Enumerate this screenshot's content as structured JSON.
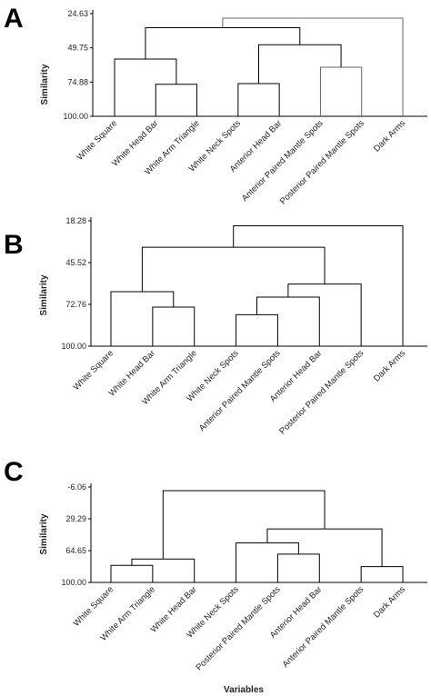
{
  "chart_data": [
    {
      "type": "dendrogram",
      "panel": "A",
      "ylabel": "Similarity",
      "xlabel": "",
      "ylim": [
        24.63,
        100.0
      ],
      "yticks": [
        "24.63",
        "49.75",
        "74.88",
        "100.00"
      ],
      "ytick_values": [
        24.63,
        49.75,
        74.88,
        100.0
      ],
      "leaves": [
        "White Square",
        "White Head Bar",
        "White Arm Triangle",
        "White Neck Spots",
        "Anterior Head Bar",
        "Anterior Paired Mantle Spots",
        "Posterior Paired Mantle Spots",
        "Dark Arms"
      ],
      "merges": [
        {
          "a": 1,
          "b": 2,
          "similarity": 76.5
        },
        {
          "a": 3,
          "b": 4,
          "similarity": 76.0
        },
        {
          "a": 5,
          "b": 6,
          "similarity": 64.0
        },
        {
          "a": 0,
          "b": 8,
          "similarity": 58.0
        },
        {
          "a": 9,
          "b": 10,
          "similarity": 47.5
        },
        {
          "a": 11,
          "b": 12,
          "similarity": 35.0
        },
        {
          "a": 13,
          "b": 7,
          "similarity": 28.0
        }
      ],
      "light_merges": [
        2,
        6
      ]
    },
    {
      "type": "dendrogram",
      "panel": "B",
      "ylabel": "Similarity",
      "xlabel": "",
      "ylim": [
        18.28,
        100.0
      ],
      "yticks": [
        "18.28",
        "45.52",
        "72.76",
        "100.00"
      ],
      "ytick_values": [
        18.28,
        45.52,
        72.76,
        100.0
      ],
      "leaves": [
        "White Square",
        "White Head Bar",
        "White Arm Triangle",
        "White Neck Spots",
        "Anterior Paired Mantle Spots",
        "Anterior Head Bar",
        "Posterior Paired Mantle Spots",
        "Dark Arms"
      ],
      "merges": [
        {
          "a": 3,
          "b": 4,
          "similarity": 79.5
        },
        {
          "a": 1,
          "b": 2,
          "similarity": 74.5
        },
        {
          "a": 8,
          "b": 5,
          "similarity": 68.0
        },
        {
          "a": 0,
          "b": 9,
          "similarity": 64.5
        },
        {
          "a": 10,
          "b": 6,
          "similarity": 59.5
        },
        {
          "a": 11,
          "b": 12,
          "similarity": 35.5
        },
        {
          "a": 13,
          "b": 7,
          "similarity": 21.5
        }
      ],
      "light_merges": []
    },
    {
      "type": "dendrogram",
      "panel": "C",
      "ylabel": "Similarity",
      "xlabel": "Variables",
      "ylim": [
        -6.06,
        100.0
      ],
      "yticks": [
        "-6.06",
        "29.29",
        "64.65",
        "100.00"
      ],
      "ytick_values": [
        -6.06,
        29.29,
        64.65,
        100.0
      ],
      "leaves": [
        "White Square",
        "White Arm Triangle",
        "White Head Bar",
        "White Neck Spots",
        "Posterior Paired Mantle Spots",
        "Anterior Head Bar",
        "Anterior Paired Mantle Spots",
        "Dark Arms"
      ],
      "merges": [
        {
          "a": 0,
          "b": 1,
          "similarity": 81.0
        },
        {
          "a": 6,
          "b": 7,
          "similarity": 82.5
        },
        {
          "a": 4,
          "b": 5,
          "similarity": 68.5
        },
        {
          "a": 8,
          "b": 2,
          "similarity": 74.0
        },
        {
          "a": 3,
          "b": 10,
          "similarity": 56.0
        },
        {
          "a": 12,
          "b": 9,
          "similarity": 40.5
        },
        {
          "a": 11,
          "b": 13,
          "similarity": -2.0
        }
      ],
      "light_merges": []
    }
  ]
}
